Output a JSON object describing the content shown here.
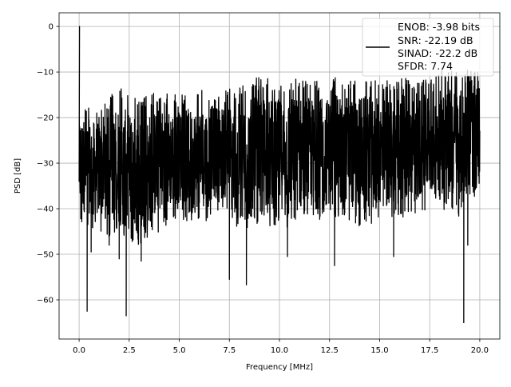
{
  "chart_data": {
    "type": "line",
    "title": "",
    "xlabel": "Frequency [MHz]",
    "ylabel": "PSD [dB]",
    "xlim": [
      -1.0,
      21.0
    ],
    "ylim": [
      -68.6,
      3.0
    ],
    "xticks": [
      0.0,
      2.5,
      5.0,
      7.5,
      10.0,
      12.5,
      15.0,
      17.5,
      20.0
    ],
    "xtick_labels": [
      "0.0",
      "2.5",
      "5.0",
      "7.5",
      "10.0",
      "12.5",
      "15.0",
      "17.5",
      "20.0"
    ],
    "yticks": [
      0,
      -10,
      -20,
      -30,
      -40,
      -50,
      -60
    ],
    "ytick_labels": [
      "0",
      "−10",
      "−20",
      "−30",
      "−40",
      "−50",
      "−60"
    ],
    "grid": true,
    "legend_placement": "upper right",
    "legend": [
      "ENOB: -3.98 bits",
      "SNR: -22.19 dB",
      "SINAD: -22.2 dB",
      "SFDR: 7.74"
    ],
    "series_color": "#000000",
    "envelope": {
      "x": [
        0,
        1,
        2,
        3,
        4,
        5,
        6,
        7,
        8,
        9,
        10,
        11,
        12,
        13,
        14,
        15,
        16,
        17,
        18,
        19,
        20
      ],
      "upper": [
        -16,
        -18,
        -13,
        -16,
        -14,
        -15,
        -14,
        -14,
        -13,
        -11,
        -12,
        -11,
        -12,
        -11,
        -11,
        -12,
        -11,
        -12,
        -9,
        -10,
        -9
      ],
      "lower": [
        -44,
        -45,
        -48,
        -50,
        -45,
        -42,
        -44,
        -40,
        -45,
        -44,
        -44,
        -45,
        -44,
        -42,
        -44,
        -43,
        -42,
        -41,
        -40,
        -42,
        -38
      ]
    },
    "peaks": [
      {
        "x": 0.02,
        "y": 0
      }
    ],
    "dips": [
      {
        "x": 0.4,
        "y": -62.5
      },
      {
        "x": 0.6,
        "y": -49.5
      },
      {
        "x": 1.5,
        "y": -48
      },
      {
        "x": 2.0,
        "y": -51
      },
      {
        "x": 2.35,
        "y": -63.5
      },
      {
        "x": 3.1,
        "y": -51.5
      },
      {
        "x": 7.5,
        "y": -55.5
      },
      {
        "x": 8.35,
        "y": -56.7
      },
      {
        "x": 10.4,
        "y": -50.5
      },
      {
        "x": 12.75,
        "y": -52.5
      },
      {
        "x": 15.7,
        "y": -50.5
      },
      {
        "x": 19.2,
        "y": -65
      },
      {
        "x": 19.4,
        "y": -48
      }
    ]
  }
}
